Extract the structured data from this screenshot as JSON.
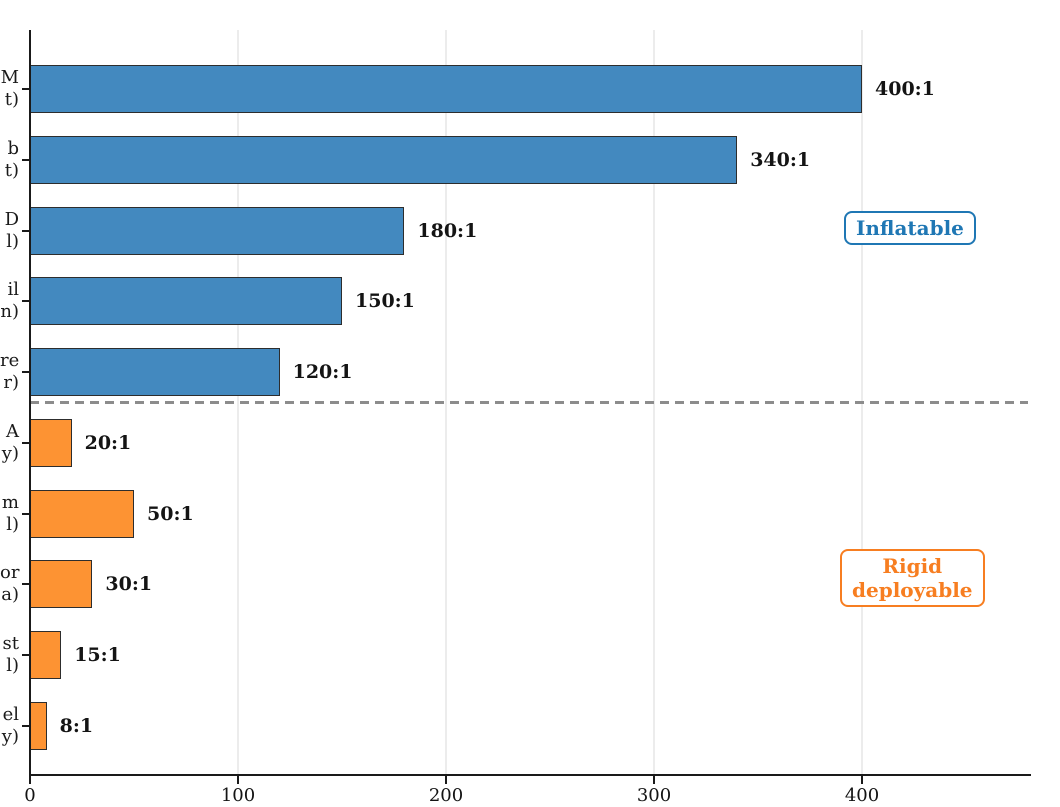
{
  "chart_data": {
    "type": "bar",
    "orientation": "horizontal",
    "title": "",
    "xlabel": "",
    "ylabel": "",
    "xlim": [
      0,
      480
    ],
    "grid": "vertical-light-gray",
    "xticks": [
      {
        "value": 0,
        "label": "0"
      },
      {
        "value": 100,
        "label": "100"
      },
      {
        "value": 200,
        "label": "200"
      },
      {
        "value": 300,
        "label": "300"
      },
      {
        "value": 400,
        "label": "400"
      }
    ],
    "bars": [
      {
        "ylabel_fragment": "M\nt)",
        "value": 400,
        "value_label": "400:1",
        "group": "inflatable"
      },
      {
        "ylabel_fragment": "b\nt)",
        "value": 340,
        "value_label": "340:1",
        "group": "inflatable"
      },
      {
        "ylabel_fragment": "D\nl)",
        "value": 180,
        "value_label": "180:1",
        "group": "inflatable"
      },
      {
        "ylabel_fragment": "il\nn)",
        "value": 150,
        "value_label": "150:1",
        "group": "inflatable"
      },
      {
        "ylabel_fragment": "re\nr)",
        "value": 120,
        "value_label": "120:1",
        "group": "inflatable"
      },
      {
        "ylabel_fragment": "A\ny)",
        "value": 20,
        "value_label": "20:1",
        "group": "rigid"
      },
      {
        "ylabel_fragment": "m\nl)",
        "value": 50,
        "value_label": "50:1",
        "group": "rigid"
      },
      {
        "ylabel_fragment": "or\na)",
        "value": 30,
        "value_label": "30:1",
        "group": "rigid"
      },
      {
        "ylabel_fragment": "st\nl)",
        "value": 15,
        "value_label": "15:1",
        "group": "rigid"
      },
      {
        "ylabel_fragment": "el\ny)",
        "value": 8,
        "value_label": "8:1",
        "group": "rigid"
      }
    ],
    "separator": {
      "style": "dashed",
      "between_bar_indices": [
        4,
        5
      ]
    },
    "legend": {
      "inflatable": {
        "label": "Inflatable",
        "color": "#1f77b4"
      },
      "rigid": {
        "label_line1": "Rigid",
        "label_line2": "deployable",
        "color": "#f77e21"
      }
    },
    "colors": {
      "bar_inflatable": "#4389bf",
      "bar_rigid": "#fd9333",
      "bar_edge": "#2d2d2d",
      "dashed_separator": "#8c8c8c",
      "gridline": "#ececec",
      "axis": "#1a1a1a"
    }
  }
}
